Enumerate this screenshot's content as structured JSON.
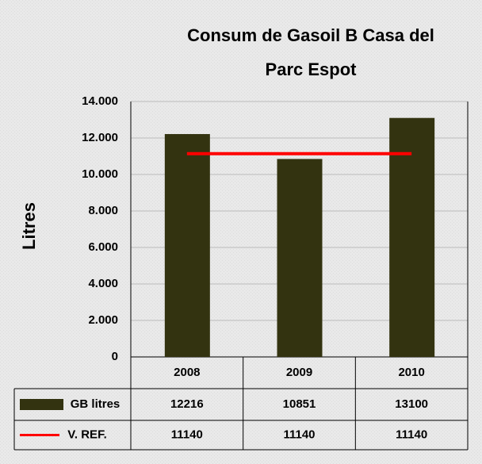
{
  "chart_data": {
    "type": "bar",
    "title": [
      "Consum de Gasoil B Casa del",
      "Parc Espot"
    ],
    "y_label": "Litres",
    "categories": [
      "2008",
      "2009",
      "2010"
    ],
    "series": [
      {
        "name": "GB litres",
        "color": "#333310",
        "type": "bar",
        "values": [
          12216,
          10851,
          13100
        ]
      },
      {
        "name": "V. REF.",
        "color": "#ff0000",
        "type": "line",
        "values": [
          11140,
          11140,
          11140
        ]
      }
    ],
    "ylim": [
      0,
      14000
    ],
    "yticks": [
      0,
      {
        "value": 2000,
        "label": "2.000"
      },
      {
        "value": 4000,
        "label": "4.000"
      },
      {
        "value": 6000,
        "label": "6.000"
      },
      {
        "value": 8000,
        "label": "8.000"
      },
      {
        "value": 10000,
        "label": "10.000"
      },
      {
        "value": 12000,
        "label": "12.000"
      },
      {
        "value": 14000,
        "label": "14.000"
      }
    ],
    "grid": true
  }
}
